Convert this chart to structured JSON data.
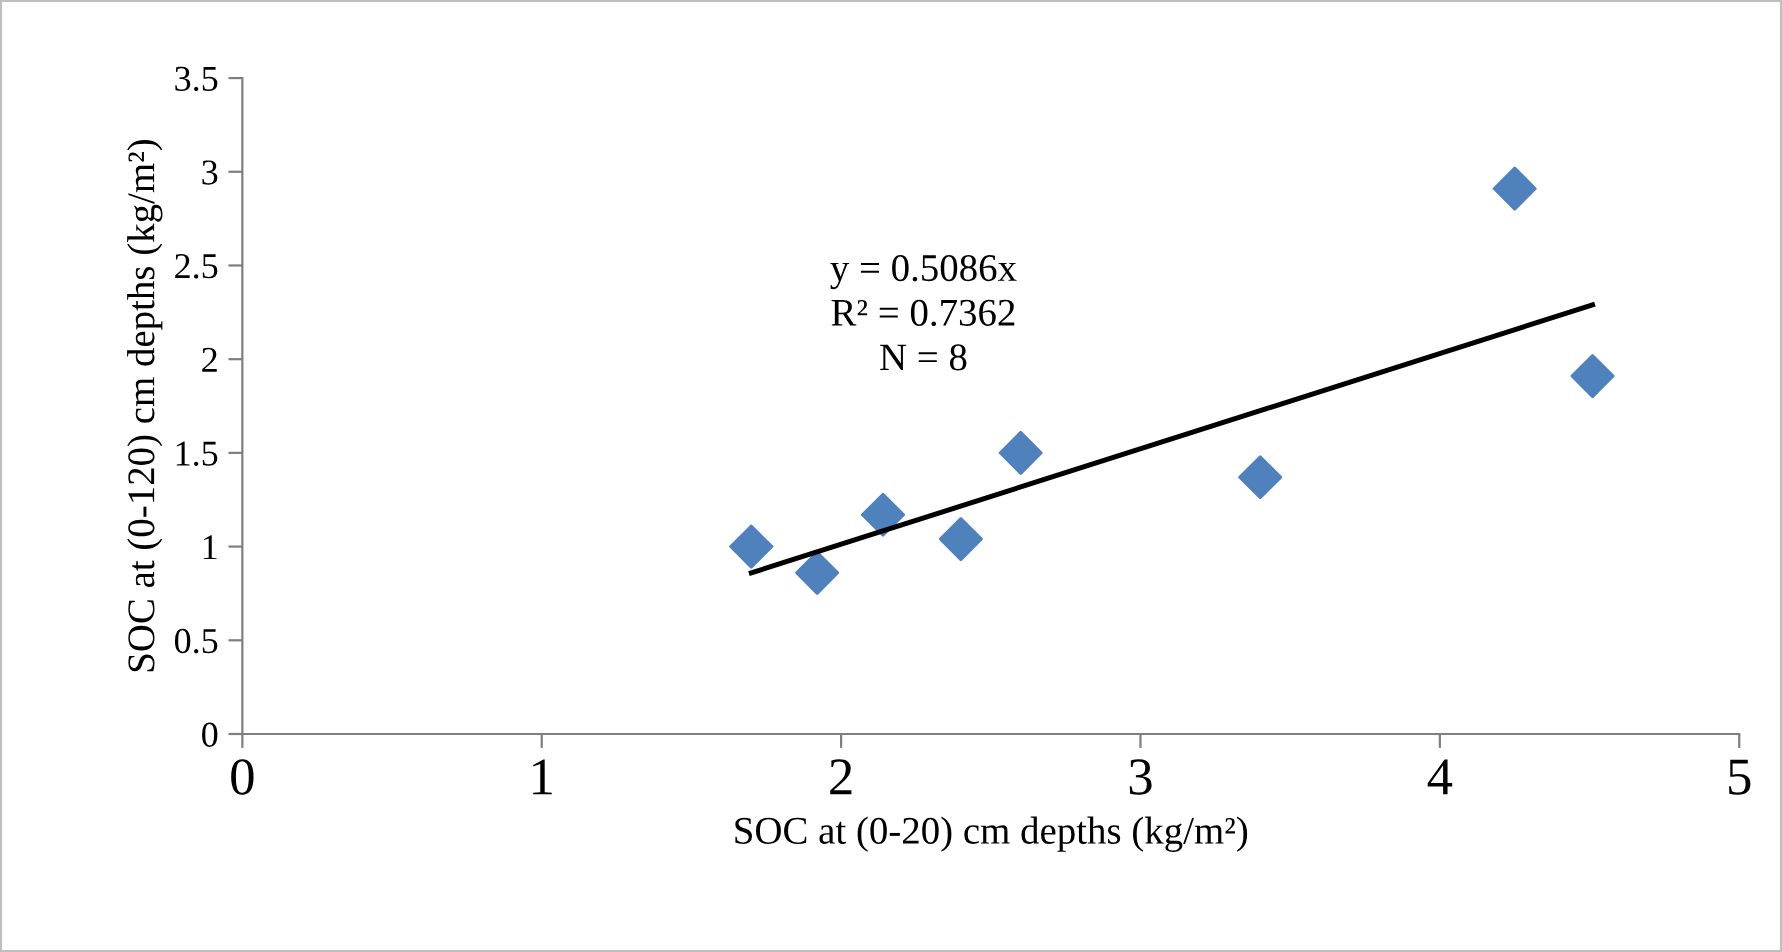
{
  "chart_data": {
    "type": "scatter",
    "xlabel": "SOC at (0-20) cm depths (kg/m²)",
    "ylabel": "SOC at (0-120) cm depths (kg/m²)",
    "x": [
      1.7,
      1.92,
      2.14,
      2.4,
      2.6,
      3.4,
      4.25,
      4.51
    ],
    "series": [
      {
        "color": "#4f81bd",
        "marker": "diamond",
        "values": [
          1.0,
          0.86,
          1.17,
          1.04,
          1.5,
          1.37,
          2.91,
          1.91
        ]
      },
      {
        "type": "line",
        "color": "#000000",
        "marker": "none",
        "line_style": "solid",
        "x": [
          1.7,
          4.51
        ],
        "values": [
          0.86,
          2.29
        ]
      }
    ],
    "annotations": [
      "y = 0.5086x",
      "R² = 0.7362",
      "N = 8"
    ],
    "xlim": [
      0,
      5
    ],
    "xticks": [
      0,
      1,
      2,
      3,
      4,
      5
    ],
    "ylim": [
      0,
      3.5
    ],
    "yticks": [
      0,
      0.5,
      1,
      1.5,
      2,
      2.5,
      3,
      3.5
    ],
    "grid": false,
    "legend": false
  }
}
